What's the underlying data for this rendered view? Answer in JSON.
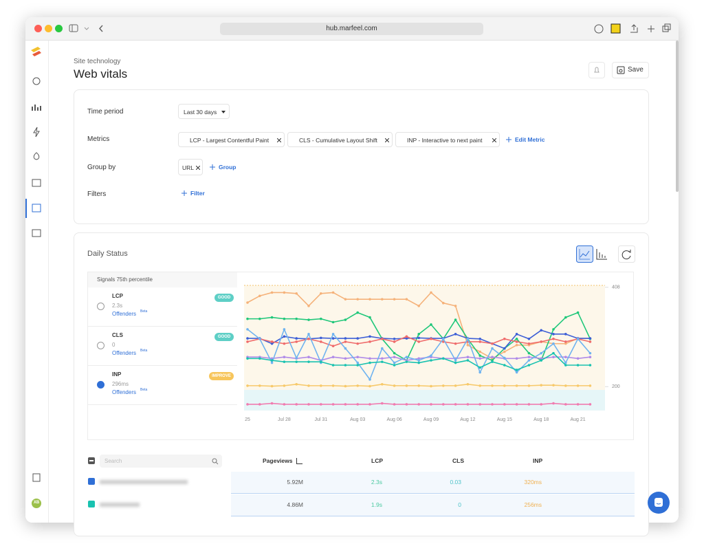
{
  "browser": {
    "url": "hub.marfeel.com"
  },
  "sidebar": {
    "avatar": "XB"
  },
  "header": {
    "breadcrumb": "Site technology",
    "title": "Web vitals",
    "save": "Save"
  },
  "filters": {
    "time_period": {
      "label": "Time period",
      "value": "Last 30 days"
    },
    "metrics": {
      "label": "Metrics",
      "chips": [
        "LCP - Largest Contentful Paint",
        "CLS - Cumulative Layout Shift",
        "INP - Interactive to next paint"
      ],
      "edit": "Edit Metric"
    },
    "group_by": {
      "label": "Group by",
      "chips": [
        "URL"
      ],
      "add": "Group"
    },
    "filters": {
      "label": "Filters",
      "add": "Filter"
    }
  },
  "daily_status": {
    "title": "Daily Status",
    "signals_header": "Signals 75th percentile",
    "signals": [
      {
        "name": "LCP",
        "value": "2.3s",
        "link": "Offenders",
        "tag": "Beta",
        "status": "GOOD"
      },
      {
        "name": "CLS",
        "value": "0",
        "link": "Offenders",
        "tag": "Beta",
        "status": "GOOD"
      },
      {
        "name": "INP",
        "value": "296ms",
        "link": "Offenders",
        "tag": "Beta",
        "status": "IMPROVE"
      }
    ]
  },
  "chart_data": {
    "type": "line",
    "categories": [
      "25",
      null,
      null,
      "Jul 28",
      null,
      null,
      "Jul 31",
      null,
      null,
      "Aug 03",
      null,
      null,
      "Aug 06",
      null,
      null,
      "Aug 09",
      null,
      null,
      "Aug 12",
      null,
      null,
      "Aug 15",
      null,
      null,
      "Aug 18",
      null,
      null,
      "Aug 21",
      null
    ],
    "ylim": [
      150,
      412
    ],
    "yticks": [
      200,
      408
    ],
    "series": [
      {
        "color": "#f5b27a",
        "values": [
          376,
          390,
          397,
          397,
          395,
          369,
          395,
          397,
          383,
          383,
          383,
          383,
          383,
          383,
          369,
          397,
          375,
          369,
          287,
          273,
          259,
          273,
          287,
          287,
          294,
          290,
          290,
          301,
          301
        ]
      },
      {
        "color": "#1fc77a",
        "values": [
          342,
          342,
          345,
          342,
          342,
          340,
          342,
          335,
          340,
          355,
          345,
          300,
          270,
          255,
          310,
          330,
          300,
          340,
          300,
          265,
          255,
          280,
          300,
          270,
          255,
          320,
          345,
          355,
          300
        ]
      },
      {
        "color": "#3d5fd6",
        "values": [
          301,
          301,
          290,
          305,
          301,
          300,
          302,
          301,
          301,
          301,
          305,
          301,
          300,
          301,
          302,
          301,
          301,
          310,
          301,
          300,
          290,
          280,
          310,
          300,
          318,
          310,
          310,
          301,
          301
        ]
      },
      {
        "color": "#ef6b6b",
        "values": [
          294,
          300,
          294,
          290,
          294,
          300,
          294,
          285,
          294,
          290,
          294,
          300,
          294,
          305,
          294,
          300,
          294,
          290,
          294,
          294,
          290,
          300,
          294,
          290,
          294,
          300,
          294,
          300,
          294
        ]
      },
      {
        "color": "#b08be8",
        "values": [
          262,
          262,
          259,
          262,
          259,
          262,
          255,
          262,
          259,
          262,
          259,
          259,
          262,
          255,
          259,
          262,
          259,
          259,
          262,
          259,
          262,
          259,
          259,
          262,
          259,
          262,
          262,
          259,
          262
        ]
      },
      {
        "color": "#6fb3f0",
        "values": [
          320,
          300,
          250,
          320,
          260,
          310,
          250,
          310,
          280,
          250,
          215,
          280,
          250,
          262,
          255,
          265,
          300,
          255,
          300,
          230,
          280,
          260,
          230,
          255,
          270,
          290,
          250,
          300,
          270
        ]
      },
      {
        "color": "#19c2b0",
        "values": [
          259,
          259,
          255,
          252,
          252,
          252,
          252,
          245,
          245,
          245,
          250,
          252,
          245,
          252,
          250,
          255,
          259,
          250,
          255,
          240,
          252,
          245,
          235,
          245,
          255,
          270,
          245,
          245,
          245
        ]
      },
      {
        "color": "#f7c96a",
        "values": [
          202,
          202,
          201,
          202,
          205,
          202,
          202,
          202,
          201,
          202,
          201,
          205,
          202,
          202,
          202,
          201,
          202,
          202,
          205,
          202,
          202,
          202,
          202,
          202,
          203,
          203,
          202,
          202,
          202
        ]
      },
      {
        "color": "#f07cb0",
        "values": [
          163,
          163,
          165,
          163,
          163,
          163,
          163,
          163,
          163,
          163,
          163,
          165,
          163,
          163,
          163,
          163,
          163,
          163,
          163,
          163,
          163,
          163,
          163,
          163,
          163,
          165,
          163,
          163,
          163
        ]
      }
    ]
  },
  "table": {
    "search_placeholder": "Search",
    "columns": [
      "Pageviews",
      "LCP",
      "CLS",
      "INP"
    ],
    "rows": [
      [
        "5.92M",
        "2.3s",
        "0.03",
        "320ms"
      ],
      [
        "4.86M",
        "1.9s",
        "0",
        "256ms"
      ]
    ]
  }
}
